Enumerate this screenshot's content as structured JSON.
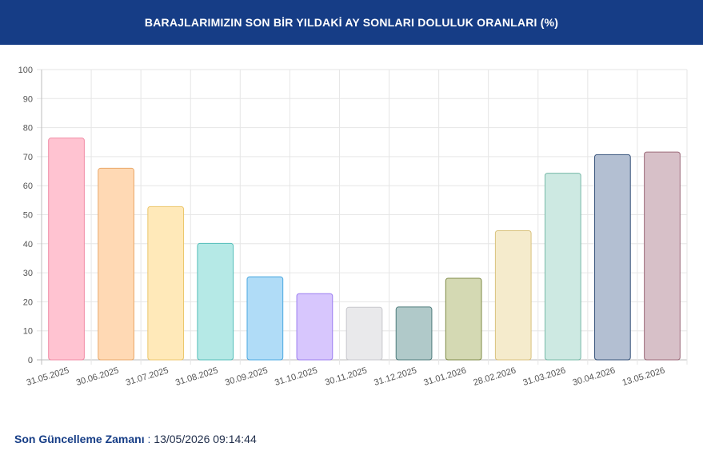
{
  "header": {
    "title": "BARAJLARIMIZIN SON BİR YILDAKİ AY SONLARI DOLULUK ORANLARI (%)"
  },
  "chart_data": {
    "type": "bar",
    "title": "",
    "xlabel": "",
    "ylabel": "",
    "ylim": [
      0,
      100
    ],
    "yticks": [
      0,
      10,
      20,
      30,
      40,
      50,
      60,
      70,
      80,
      90,
      100
    ],
    "grid": true,
    "categories": [
      "31.05.2025",
      "30.06.2025",
      "31.07.2025",
      "31.08.2025",
      "30.09.2025",
      "31.10.2025",
      "30.11.2025",
      "31.12.2025",
      "31.01.2026",
      "28.02.2026",
      "31.03.2026",
      "30.04.2026",
      "13.05.2026"
    ],
    "values": [
      76.4,
      66.0,
      52.8,
      40.1,
      28.6,
      22.8,
      18.1,
      18.2,
      28.1,
      44.5,
      64.3,
      70.7,
      71.6
    ],
    "colors": [
      {
        "fill": "#ffc3d1",
        "stroke": "#f08ba5"
      },
      {
        "fill": "#ffd9b4",
        "stroke": "#e9a768"
      },
      {
        "fill": "#ffe9b9",
        "stroke": "#ecc66a"
      },
      {
        "fill": "#b5e9e6",
        "stroke": "#52bdb8"
      },
      {
        "fill": "#b0dcf7",
        "stroke": "#4aa7e0"
      },
      {
        "fill": "#d7c6fd",
        "stroke": "#9b7ef0"
      },
      {
        "fill": "#e9e9eb",
        "stroke": "#c7c7cc"
      },
      {
        "fill": "#b0c9c9",
        "stroke": "#4e7c7c"
      },
      {
        "fill": "#d4d9b3",
        "stroke": "#7e8a45"
      },
      {
        "fill": "#f5ebcc",
        "stroke": "#d9c27d"
      },
      {
        "fill": "#cde9e2",
        "stroke": "#76b9a7"
      },
      {
        "fill": "#b3bfd2",
        "stroke": "#37537b"
      },
      {
        "fill": "#d7c0c8",
        "stroke": "#9c6a7a"
      }
    ]
  },
  "footer": {
    "label": "Son Güncelleme Zamanı",
    "separator": " : ",
    "value": "13/05/2026 09:14:44"
  }
}
